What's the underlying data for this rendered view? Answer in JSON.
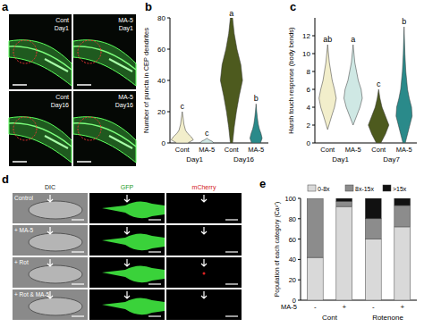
{
  "panel_a": {
    "panel": "a",
    "images": [
      {
        "group": "Cont",
        "day": "Day1"
      },
      {
        "group": "MA-5",
        "day": "Day1"
      },
      {
        "group": "Cont",
        "day": "Day16"
      },
      {
        "group": "MA-5",
        "day": "Day16"
      }
    ]
  },
  "panel_d": {
    "panel": "d",
    "columns": [
      "DIC",
      "GFP",
      "mCherry"
    ],
    "rows": [
      "Control",
      "+ MA-5",
      "+ Rot",
      "+ Rot & MA-5"
    ]
  },
  "chart_data": [
    {
      "panel": "b",
      "type": "violin",
      "y_label": "Number of puncta in CEP dendrites",
      "ylim": [
        0,
        80
      ],
      "yticks": [
        0,
        20,
        40,
        60,
        80
      ],
      "groups": [
        "Day1",
        "Day16"
      ],
      "series": [
        {
          "name": "Cont",
          "group": "Day1",
          "color": "#f2eecb",
          "letter": "c",
          "y": [
            0,
            2,
            4,
            6,
            8,
            12,
            16,
            20
          ],
          "density": [
            0.5,
            1,
            0.8,
            0.5,
            0.3,
            0.15,
            0.08,
            0
          ]
        },
        {
          "name": "MA-5",
          "group": "Day1",
          "color": "#cfe8e4",
          "letter": "c",
          "y": [
            0,
            1,
            2,
            3
          ],
          "density": [
            0.6,
            0.5,
            0.2,
            0
          ]
        },
        {
          "name": "Cont",
          "group": "Day16",
          "color": "#4d5a1e",
          "letter": "a",
          "y": [
            0,
            10,
            20,
            30,
            40,
            50,
            60,
            70,
            80
          ],
          "density": [
            0.1,
            0.25,
            0.45,
            0.7,
            1,
            0.85,
            0.5,
            0.25,
            0.1
          ]
        },
        {
          "name": "MA-5",
          "group": "Day16",
          "color": "#2a8a8a",
          "letter": "b",
          "y": [
            0,
            3,
            6,
            9,
            12,
            16,
            20,
            25
          ],
          "density": [
            0.4,
            0.55,
            0.45,
            0.3,
            0.2,
            0.12,
            0.06,
            0
          ]
        }
      ]
    },
    {
      "panel": "c",
      "type": "violin",
      "y_label": "Harsh touch response (body bends)",
      "ylim": [
        0,
        14
      ],
      "yticks": [
        0,
        2,
        4,
        6,
        8,
        10,
        12
      ],
      "groups": [
        "Day1",
        "Day7"
      ],
      "series": [
        {
          "name": "Cont",
          "group": "Day1",
          "color": "#f2eecb",
          "letter": "ab",
          "y": [
            1.5,
            3,
            4,
            5,
            6,
            7,
            9,
            11
          ],
          "density": [
            0,
            0.35,
            0.6,
            0.75,
            0.6,
            0.4,
            0.15,
            0
          ]
        },
        {
          "name": "MA-5",
          "group": "Day1",
          "color": "#cfe8e4",
          "letter": "a",
          "y": [
            2,
            3,
            4,
            5,
            6,
            7,
            9,
            11
          ],
          "density": [
            0,
            0.3,
            0.6,
            0.8,
            0.7,
            0.45,
            0.15,
            0
          ]
        },
        {
          "name": "Cont",
          "group": "Day7",
          "color": "#4d5a1e",
          "letter": "c",
          "y": [
            0,
            1,
            2,
            3,
            4,
            5,
            6
          ],
          "density": [
            0.2,
            0.6,
            0.9,
            0.6,
            0.3,
            0.12,
            0
          ]
        },
        {
          "name": "MA-5",
          "group": "Day7",
          "color": "#2a8a8a",
          "letter": "b",
          "y": [
            0,
            2,
            3,
            4,
            5,
            6,
            8,
            10,
            13
          ],
          "density": [
            0.1,
            0.5,
            0.7,
            0.65,
            0.45,
            0.3,
            0.15,
            0.07,
            0
          ]
        }
      ]
    },
    {
      "panel": "e",
      "type": "bar",
      "stacked": true,
      "legend": "top",
      "y_label": "Population of each category (Ca²⁺)",
      "x_label": "MA-5",
      "categories": [
        "-",
        "+",
        "-",
        "+"
      ],
      "groups": [
        "Cont",
        "Rotenone"
      ],
      "ylim": [
        0,
        100
      ],
      "yticks": [
        0,
        20,
        40,
        60,
        80,
        100
      ],
      "series": [
        {
          "name": "0-8x",
          "color": "#d9d9d9",
          "values": [
            42,
            92,
            60,
            72
          ]
        },
        {
          "name": "8x-15x",
          "color": "#8c8c8c",
          "values": [
            58,
            5,
            20,
            21
          ]
        },
        {
          "name": ">15x",
          "color": "#111111",
          "values": [
            0,
            3,
            20,
            7
          ]
        }
      ]
    }
  ]
}
